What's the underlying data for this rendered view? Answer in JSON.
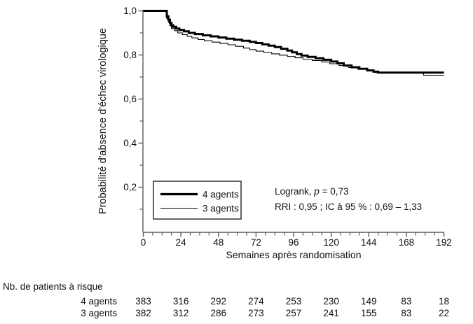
{
  "chart_data": {
    "type": "line",
    "subtype": "kaplan-meier-step",
    "title": "",
    "xlabel": "Semaines après randomisation",
    "ylabel": "Probabilité d'absence d'échec virologique",
    "xlim": [
      0,
      192
    ],
    "ylim": [
      0,
      1
    ],
    "grid": false,
    "legend_position": "inside-lower-left",
    "colors": {
      "curve": "#000000",
      "axis": "#5a5a5a",
      "text": "#111111",
      "background": "#ffffff"
    },
    "x_major_ticks": [
      {
        "value": 0,
        "label": "0"
      },
      {
        "value": 24,
        "label": "24"
      },
      {
        "value": 48,
        "label": "48"
      },
      {
        "value": 72,
        "label": "72"
      },
      {
        "value": 96,
        "label": "96"
      },
      {
        "value": 120,
        "label": "120"
      },
      {
        "value": 144,
        "label": "144"
      },
      {
        "value": 168,
        "label": "168"
      },
      {
        "value": 192,
        "label": "192"
      }
    ],
    "x_minor_step": 6,
    "y_major_ticks": [
      {
        "value": 1.0,
        "label": "1,0"
      },
      {
        "value": 0.8,
        "label": "0,8"
      },
      {
        "value": 0.6,
        "label": "0,6"
      },
      {
        "value": 0.4,
        "label": "0,4"
      },
      {
        "value": 0.2,
        "label": "0,2"
      }
    ],
    "y_minor_ticks": [
      0.9,
      0.7,
      0.5,
      0.3,
      0.1
    ],
    "series": [
      {
        "name": "4 agents",
        "style": "thick",
        "stroke_width": 3,
        "points": [
          [
            0,
            1.0
          ],
          [
            15,
            0.975
          ],
          [
            16,
            0.96
          ],
          [
            17,
            0.945
          ],
          [
            18,
            0.935
          ],
          [
            19,
            0.928
          ],
          [
            21,
            0.92
          ],
          [
            23,
            0.913
          ],
          [
            26,
            0.907
          ],
          [
            29,
            0.9
          ],
          [
            33,
            0.895
          ],
          [
            38,
            0.889
          ],
          [
            43,
            0.884
          ],
          [
            48,
            0.879
          ],
          [
            53,
            0.874
          ],
          [
            58,
            0.869
          ],
          [
            63,
            0.864
          ],
          [
            68,
            0.859
          ],
          [
            72,
            0.854
          ],
          [
            76,
            0.848
          ],
          [
            80,
            0.842
          ],
          [
            84,
            0.836
          ],
          [
            88,
            0.828
          ],
          [
            92,
            0.82
          ],
          [
            95,
            0.812
          ],
          [
            98,
            0.804
          ],
          [
            101,
            0.797
          ],
          [
            105,
            0.791
          ],
          [
            110,
            0.785
          ],
          [
            115,
            0.778
          ],
          [
            120,
            0.77
          ],
          [
            124,
            0.762
          ],
          [
            128,
            0.752
          ],
          [
            133,
            0.744
          ],
          [
            138,
            0.737
          ],
          [
            143,
            0.73
          ],
          [
            147,
            0.724
          ],
          [
            150,
            0.72
          ],
          [
            192,
            0.72
          ]
        ]
      },
      {
        "name": "3 agents",
        "style": "thin",
        "stroke_width": 1.1,
        "points": [
          [
            0,
            1.0
          ],
          [
            15,
            0.965
          ],
          [
            16,
            0.948
          ],
          [
            17,
            0.933
          ],
          [
            18,
            0.92
          ],
          [
            20,
            0.91
          ],
          [
            22,
            0.9
          ],
          [
            25,
            0.892
          ],
          [
            28,
            0.884
          ],
          [
            31,
            0.877
          ],
          [
            35,
            0.87
          ],
          [
            39,
            0.864
          ],
          [
            44,
            0.858
          ],
          [
            49,
            0.852
          ],
          [
            54,
            0.846
          ],
          [
            59,
            0.839
          ],
          [
            64,
            0.831
          ],
          [
            68,
            0.824
          ],
          [
            72,
            0.817
          ],
          [
            77,
            0.811
          ],
          [
            82,
            0.805
          ],
          [
            87,
            0.799
          ],
          [
            92,
            0.793
          ],
          [
            97,
            0.787
          ],
          [
            102,
            0.781
          ],
          [
            108,
            0.775
          ],
          [
            114,
            0.768
          ],
          [
            119,
            0.76
          ],
          [
            125,
            0.752
          ],
          [
            131,
            0.743
          ],
          [
            137,
            0.735
          ],
          [
            143,
            0.727
          ],
          [
            148,
            0.72
          ],
          [
            179,
            0.708
          ],
          [
            192,
            0.708
          ]
        ]
      }
    ],
    "stats": {
      "logrank_prefix": "Logrank, ",
      "logrank_p_symbol": "p",
      "logrank_suffix": " = 0,73",
      "rri_line": "RRI : 0,95 ; IC à 95 % : 0,69 – 1,33"
    },
    "risk_table": {
      "title": "Nb. de patients à risque",
      "timepoints": [
        0,
        24,
        48,
        72,
        96,
        120,
        144,
        168,
        192
      ],
      "rows": [
        {
          "label": "4 agents",
          "counts": [
            383,
            316,
            292,
            274,
            253,
            230,
            149,
            83,
            18
          ]
        },
        {
          "label": "3 agents",
          "counts": [
            382,
            312,
            286,
            273,
            257,
            241,
            155,
            83,
            22
          ]
        }
      ]
    }
  }
}
